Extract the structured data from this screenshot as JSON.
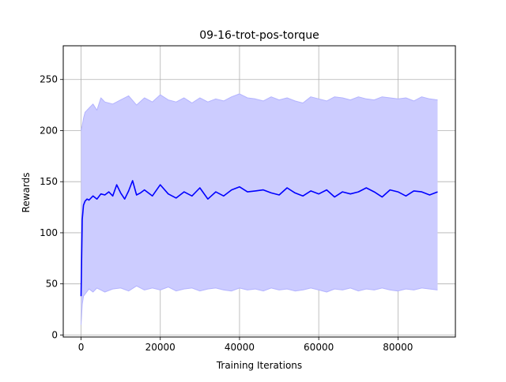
{
  "chart_data": {
    "type": "line",
    "title": "09-16-trot-pos-torque",
    "xlabel": "Training Iterations",
    "ylabel": "Rewards",
    "xlim": [
      -4500,
      94500
    ],
    "ylim": [
      -2,
      283
    ],
    "xticks": [
      0,
      20000,
      40000,
      60000,
      80000
    ],
    "xtick_labels": [
      "0",
      "20000",
      "40000",
      "60000",
      "80000"
    ],
    "yticks": [
      0,
      50,
      100,
      150,
      200,
      250
    ],
    "ytick_labels": [
      "0",
      "50",
      "100",
      "150",
      "200",
      "250"
    ],
    "grid": true,
    "legend": "none",
    "colors": {
      "mean": "#0000ff",
      "band_fill": "#ccccff",
      "band_edge": "#b3b3ff",
      "grid": "#b0b0b0"
    },
    "series": [
      {
        "role": "mean",
        "x": [
          0,
          300,
          600,
          1000,
          1500,
          2000,
          3000,
          4000,
          5000,
          6000,
          7000,
          8000,
          9000,
          10000,
          11000,
          12000,
          13000,
          14000,
          15000,
          16000,
          18000,
          20000,
          22000,
          24000,
          26000,
          28000,
          30000,
          32000,
          34000,
          36000,
          38000,
          40000,
          42000,
          44000,
          46000,
          48000,
          50000,
          52000,
          54000,
          56000,
          58000,
          60000,
          62000,
          64000,
          66000,
          68000,
          70000,
          72000,
          74000,
          76000,
          78000,
          80000,
          82000,
          84000,
          86000,
          88000,
          90000
        ],
        "y": [
          38,
          113,
          127,
          131,
          133,
          132,
          136,
          133,
          138,
          137,
          140,
          136,
          147,
          139,
          133,
          141,
          151,
          137,
          139,
          142,
          136,
          147,
          138,
          134,
          140,
          136,
          144,
          133,
          140,
          136,
          142,
          145,
          140,
          141,
          142,
          139,
          137,
          144,
          139,
          136,
          141,
          138,
          142,
          135,
          140,
          138,
          140,
          144,
          140,
          135,
          142,
          140,
          136,
          141,
          140,
          137,
          140
        ]
      },
      {
        "role": "upper",
        "x": [
          0,
          300,
          600,
          1000,
          2000,
          3000,
          4000,
          5000,
          6000,
          8000,
          10000,
          12000,
          14000,
          16000,
          18000,
          20000,
          22000,
          24000,
          26000,
          28000,
          30000,
          32000,
          34000,
          36000,
          38000,
          40000,
          42000,
          44000,
          46000,
          48000,
          50000,
          52000,
          54000,
          56000,
          58000,
          60000,
          62000,
          64000,
          66000,
          68000,
          70000,
          72000,
          74000,
          76000,
          78000,
          80000,
          82000,
          84000,
          86000,
          88000,
          90000
        ],
        "y": [
          200,
          205,
          212,
          218,
          222,
          226,
          220,
          232,
          228,
          226,
          230,
          234,
          225,
          232,
          228,
          235,
          230,
          228,
          232,
          227,
          232,
          228,
          231,
          229,
          233,
          236,
          232,
          231,
          229,
          233,
          230,
          232,
          229,
          227,
          233,
          231,
          229,
          233,
          232,
          230,
          233,
          231,
          230,
          233,
          232,
          231,
          232,
          229,
          233,
          231,
          230
        ]
      },
      {
        "role": "lower",
        "x": [
          0,
          300,
          600,
          1000,
          2000,
          3000,
          4000,
          5000,
          6000,
          8000,
          10000,
          12000,
          14000,
          16000,
          18000,
          20000,
          22000,
          24000,
          26000,
          28000,
          30000,
          32000,
          34000,
          36000,
          38000,
          40000,
          42000,
          44000,
          46000,
          48000,
          50000,
          52000,
          54000,
          56000,
          58000,
          60000,
          62000,
          64000,
          66000,
          68000,
          70000,
          72000,
          74000,
          76000,
          78000,
          80000,
          82000,
          84000,
          86000,
          88000,
          90000
        ],
        "y": [
          10,
          30,
          38,
          40,
          45,
          42,
          46,
          44,
          42,
          45,
          46,
          43,
          48,
          44,
          46,
          44,
          47,
          43,
          45,
          46,
          43,
          45,
          46,
          44,
          43,
          46,
          44,
          45,
          43,
          46,
          44,
          45,
          43,
          44,
          46,
          44,
          42,
          45,
          44,
          46,
          43,
          45,
          44,
          46,
          44,
          43,
          45,
          44,
          46,
          45,
          44
        ]
      }
    ]
  }
}
